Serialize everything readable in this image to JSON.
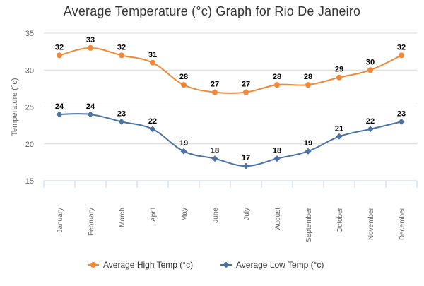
{
  "chart_data": {
    "type": "line",
    "title": "Average Temperature (°c) Graph for Rio De Janeiro",
    "ylabel": "Temperature (°c)",
    "xlabel": "",
    "categories": [
      "January",
      "February",
      "March",
      "April",
      "May",
      "June",
      "July",
      "August",
      "September",
      "October",
      "November",
      "December"
    ],
    "ylim": [
      15,
      35
    ],
    "yticks": [
      15,
      20,
      25,
      30,
      35
    ],
    "grid": true,
    "legend_position": "bottom",
    "series": [
      {
        "name": "Average High Temp (°c)",
        "color": "#f0883a",
        "values": [
          32,
          33,
          32,
          31,
          28,
          27,
          27,
          28,
          28,
          29,
          30,
          32
        ]
      },
      {
        "name": "Average Low Temp (°c)",
        "color": "#4a72a4",
        "values": [
          24,
          24,
          23,
          22,
          19,
          18,
          17,
          18,
          19,
          21,
          22,
          23
        ]
      }
    ]
  }
}
